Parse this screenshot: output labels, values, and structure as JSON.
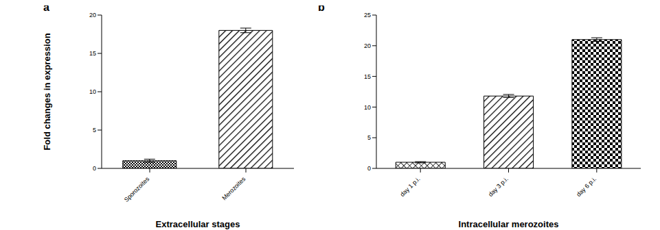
{
  "chart_data": [
    {
      "type": "bar",
      "title": "a",
      "categories": [
        "Sporozoites",
        "Merozoites"
      ],
      "values": [
        1.0,
        18.0
      ],
      "errors": [
        0.2,
        0.3
      ],
      "x_label": "Extracellular stages",
      "y_label": "Fold changes in expression",
      "ylim": [
        0,
        20
      ],
      "yticks": [
        0,
        5,
        10,
        15,
        20
      ],
      "color": "#000000",
      "grid": false
    },
    {
      "type": "bar",
      "title": "b",
      "categories": [
        "day 1 p.i.",
        "day 3 p.i.",
        "day 6 p.i."
      ],
      "values": [
        1.0,
        11.8,
        21.0
      ],
      "errors": [
        0.1,
        0.25,
        0.3
      ],
      "x_label": "Intracellular merozoites",
      "ylim": [
        0,
        25
      ],
      "yticks": [
        0,
        5,
        10,
        15,
        20,
        25
      ],
      "color": "#000000",
      "grid": false
    }
  ]
}
